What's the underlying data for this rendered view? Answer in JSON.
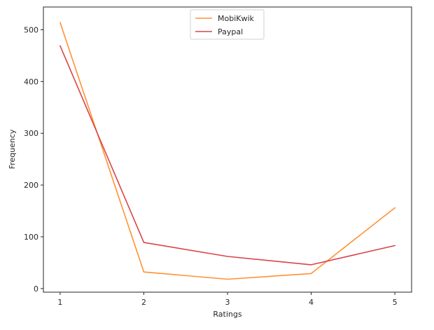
{
  "chart_data": {
    "type": "line",
    "title": "",
    "xlabel": "Ratings",
    "ylabel": "Frequency",
    "x": [
      1,
      2,
      3,
      4,
      5
    ],
    "xlim": [
      0.8,
      5.2
    ],
    "ylim": [
      -7,
      544
    ],
    "xticks": [
      "1",
      "2",
      "3",
      "4",
      "5"
    ],
    "yticks": [
      0,
      100,
      200,
      300,
      400,
      500
    ],
    "grid": false,
    "legend_position": "top-center",
    "series": [
      {
        "name": "MobiKwik",
        "color": "#ff9233",
        "values": [
          514,
          32,
          18,
          29,
          156
        ]
      },
      {
        "name": "Paypal",
        "color": "#d94548",
        "values": [
          469,
          89,
          62,
          46,
          83
        ]
      }
    ]
  }
}
